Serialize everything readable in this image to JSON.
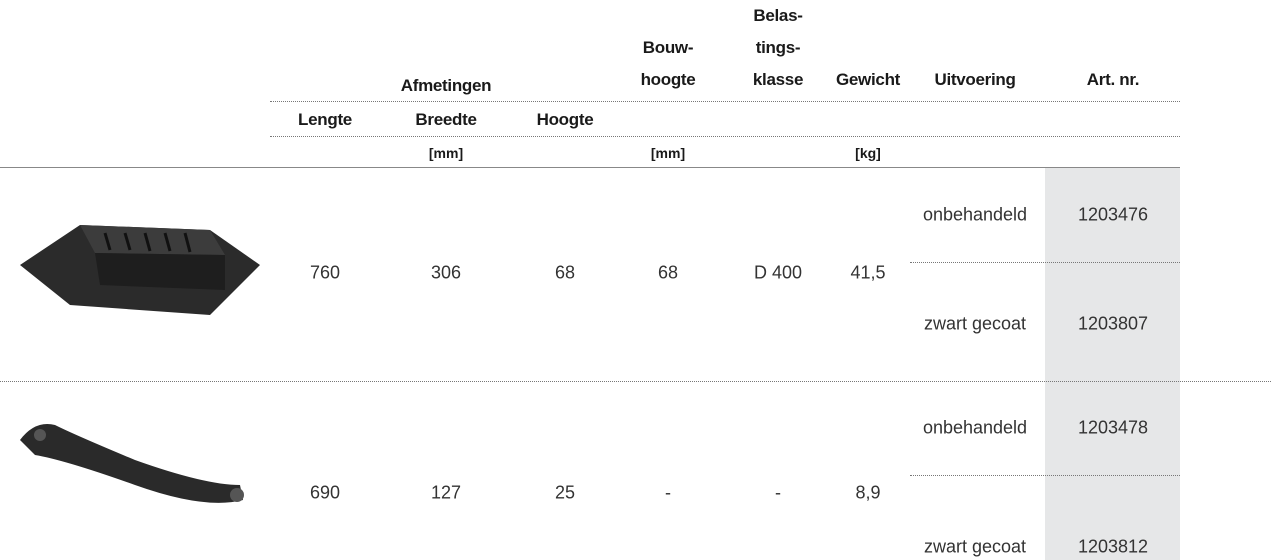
{
  "header": {
    "dimensions": "Afmetingen",
    "build_height": [
      "Bouw-",
      "hoogte"
    ],
    "load_class": [
      "Belas-",
      "tings-",
      "klasse"
    ],
    "weight": "Gewicht",
    "finish": "Uitvoering",
    "article": "Art. nr.",
    "length": "Lengte",
    "width": "Breedte",
    "height": "Hoogte",
    "unit_mm_dim": "[mm]",
    "unit_mm_build": "[mm]",
    "unit_kg": "[kg]"
  },
  "rows": [
    {
      "length": "760",
      "width": "306",
      "height": "68",
      "build_height": "68",
      "load_class": "D 400",
      "weight": "41,5",
      "variants": [
        {
          "finish": "onbehandeld",
          "article": "1203476"
        },
        {
          "finish": "zwart gecoat",
          "article": "1203807"
        }
      ]
    },
    {
      "length": "690",
      "width": "127",
      "height": "25",
      "build_height": "-",
      "load_class": "-",
      "weight": "8,9",
      "variants": [
        {
          "finish": "onbehandeld",
          "article": "1203478"
        },
        {
          "finish": "zwart gecoat",
          "article": "1203812"
        }
      ]
    }
  ]
}
